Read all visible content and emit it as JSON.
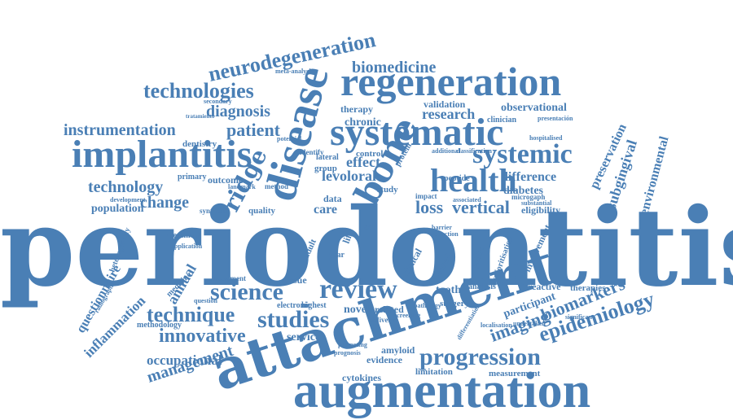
{
  "color": "#4a7fb5",
  "words": [
    "periodontitis",
    "attachment",
    "augmentation",
    "disease",
    "regeneration",
    "systematic",
    "implantitis",
    "health",
    "bone",
    "systemic",
    "review",
    "science",
    "progression",
    "neurodegeneration",
    "epidemiology",
    "technologies",
    "studies",
    "technique",
    "ridge",
    "biomarkers",
    "innovative",
    "management",
    "diagnosis",
    "instrumentation",
    "patient",
    "technology",
    "biomedicine",
    "inflammation",
    "questionnaire",
    "occupational",
    "environmental",
    "subgingival",
    "preservation",
    "imaging",
    "loss",
    "vertical",
    "levoloral",
    "change",
    "population",
    "difference",
    "diabetes",
    "annual",
    "effect",
    "research",
    "chronic",
    "therapy",
    "validation",
    "observational",
    "tooth",
    "novel",
    "related",
    "care",
    "service",
    "cytokines",
    "amyloid",
    "evidence",
    "limitation",
    "measurement",
    "reactive",
    "therapies",
    "participant",
    "surgery",
    "analysis",
    "tissue",
    "outcome",
    "primary",
    "quality",
    "lateral",
    "group",
    "control",
    "protein",
    "peptide",
    "clinician",
    "eligibility",
    "microgaph",
    "public",
    "clinical",
    "based",
    "adult",
    "year",
    "data",
    "cell",
    "impact",
    "electronic",
    "highest",
    "medicine",
    "methodology",
    "radiographic",
    "heterogeneity",
    "treatment",
    "development",
    "dentistry",
    "identify",
    "hospitalised",
    "presentación",
    "tratamiento",
    "secondary",
    "meta-analysis",
    "potential",
    "synthesis",
    "method",
    "application",
    "assessment",
    "question",
    "landmark",
    "involvement",
    "prioritisation",
    "classification",
    "additional",
    "associated",
    "substantial",
    "significant",
    "undertaken",
    "localisation",
    "differentiation",
    "perspective",
    "pathology",
    "screening",
    "delivery",
    "promoting",
    "prognosis",
    "study",
    "life",
    "barrier",
    "reduction"
  ]
}
